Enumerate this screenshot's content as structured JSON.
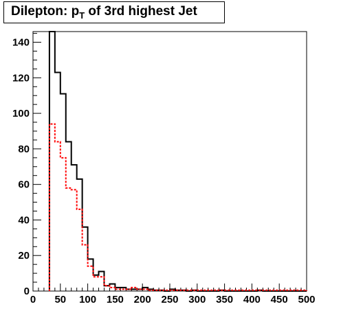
{
  "chart_data": {
    "type": "histogram",
    "title": {
      "prefix": "Dilepton: p",
      "sub": "T",
      "suffix": " of 3rd highest Jet"
    },
    "xlabel": "",
    "ylabel": "",
    "xlim": [
      0,
      500
    ],
    "ylim": [
      0,
      146
    ],
    "bin_width": 10,
    "x_ticks": [
      "0",
      "50",
      "100",
      "150",
      "200",
      "250",
      "300",
      "350",
      "400",
      "450",
      "500"
    ],
    "y_ticks": [
      "0",
      "20",
      "40",
      "60",
      "80",
      "100",
      "120",
      "140"
    ],
    "grid": false,
    "legend": "none",
    "series": [
      {
        "style": "solid",
        "color": "#000000",
        "bin_edges": [
          30,
          40,
          50,
          60,
          70,
          80,
          90,
          100,
          110,
          120,
          130,
          140,
          150,
          160,
          170,
          180,
          190,
          200,
          210,
          220,
          230,
          240,
          250,
          260,
          270,
          280,
          290,
          300,
          310,
          320,
          330,
          340,
          350,
          360,
          370,
          380,
          390,
          400,
          410,
          420,
          430,
          440,
          450,
          460,
          470,
          480,
          490,
          500
        ],
        "values": [
          146,
          123,
          111,
          84,
          71,
          63,
          36,
          18,
          9,
          11,
          3,
          4,
          2,
          2,
          1,
          1,
          1,
          2,
          1,
          0.5,
          0.5,
          0,
          1,
          0.5,
          0.5,
          0,
          0.5,
          0,
          0,
          0,
          0,
          0.5,
          0,
          0,
          0,
          0,
          0,
          0,
          0.5,
          0,
          0,
          0,
          0,
          0,
          0,
          0,
          0
        ]
      },
      {
        "style": "dashed",
        "color": "#ff0000",
        "bin_edges": [
          30,
          40,
          50,
          60,
          70,
          80,
          90,
          100,
          110,
          120,
          130,
          140,
          150,
          160,
          170,
          180,
          190,
          200,
          210,
          220,
          230,
          240,
          250,
          260,
          270,
          280,
          290,
          300,
          310,
          320,
          330,
          340,
          350,
          360,
          370,
          380,
          390,
          400,
          410,
          420,
          430,
          440,
          450,
          460,
          470,
          480,
          490,
          500
        ],
        "values": [
          94,
          84,
          75,
          58,
          57,
          46,
          26,
          14,
          8,
          8,
          3,
          2,
          1,
          1,
          1,
          2,
          1,
          1,
          0.5,
          0.5,
          0.5,
          0.5,
          0.5,
          0.5,
          0.5,
          0.5,
          0.5,
          0.5,
          0.5,
          0.5,
          0.5,
          0.5,
          0.5,
          0.5,
          0.5,
          0.5,
          0.5,
          0.5,
          0.5,
          0.5,
          0.5,
          0.5,
          0.5,
          0.5,
          0.5,
          0.5,
          0.5
        ]
      }
    ]
  }
}
